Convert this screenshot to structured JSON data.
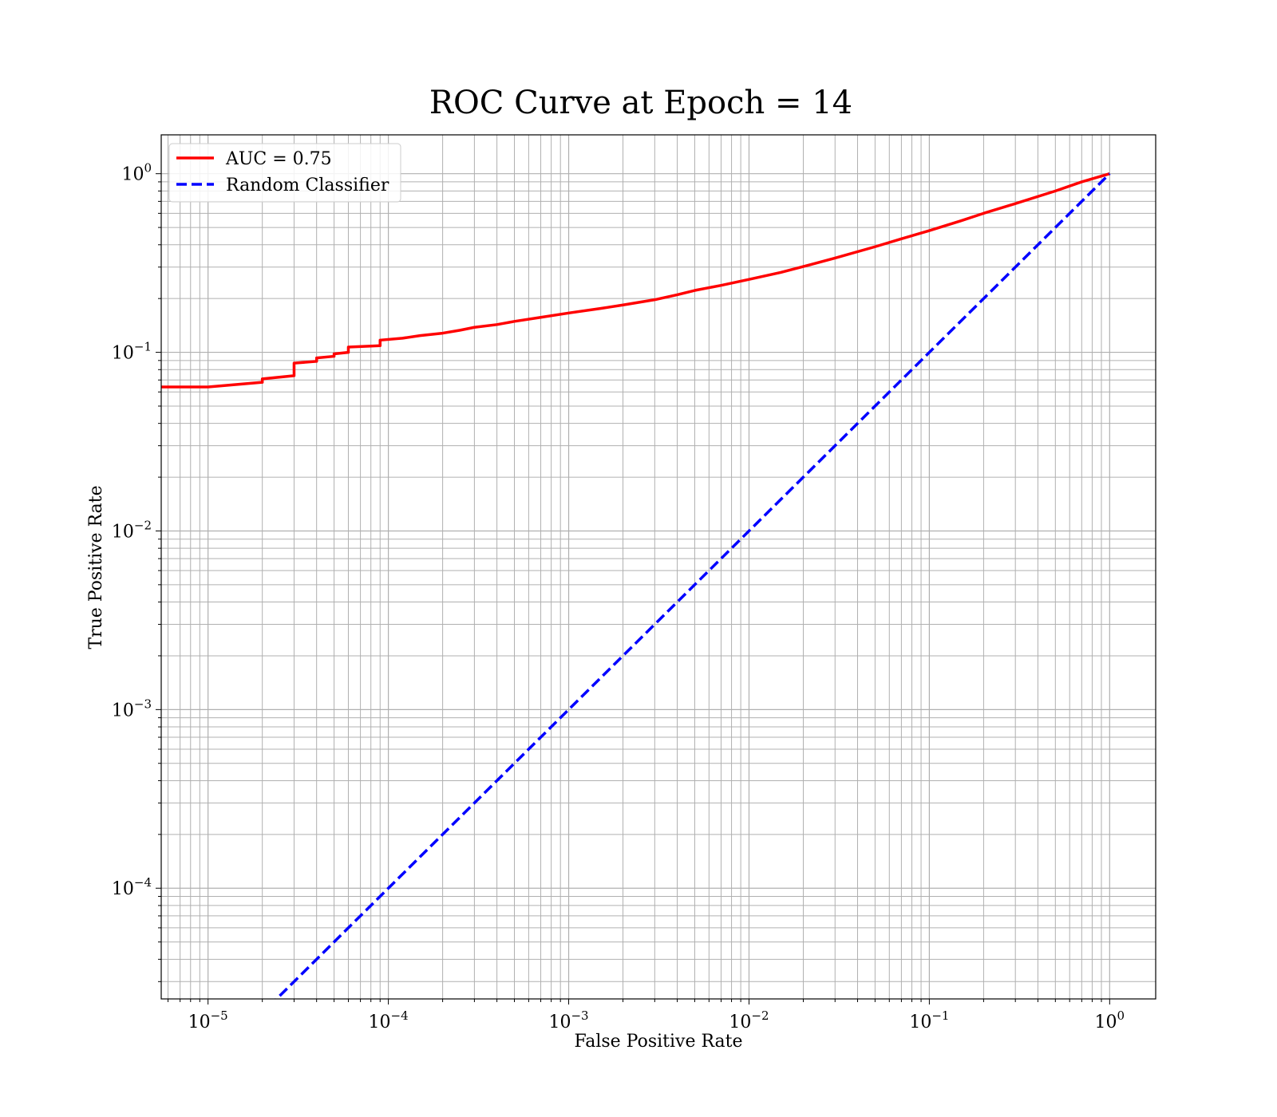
{
  "chart_data": {
    "type": "line",
    "title": "ROC Curve at Epoch = 14",
    "xlabel": "False Positive Rate",
    "ylabel": "True Positive Rate",
    "xscale": "log",
    "yscale": "log",
    "xlim": [
      5.5e-06,
      1.8
    ],
    "ylim": [
      2.4e-05,
      1.65
    ],
    "grid": true,
    "legend_position": "upper left",
    "xticks": [
      {
        "value": 1e-05,
        "base": "10",
        "exp": "−5"
      },
      {
        "value": 0.0001,
        "base": "10",
        "exp": "−4"
      },
      {
        "value": 0.001,
        "base": "10",
        "exp": "−3"
      },
      {
        "value": 0.01,
        "base": "10",
        "exp": "−2"
      },
      {
        "value": 0.1,
        "base": "10",
        "exp": "−1"
      },
      {
        "value": 1,
        "base": "10",
        "exp": "0"
      }
    ],
    "yticks": [
      {
        "value": 0.0001,
        "base": "10",
        "exp": "−4"
      },
      {
        "value": 0.001,
        "base": "10",
        "exp": "−3"
      },
      {
        "value": 0.01,
        "base": "10",
        "exp": "−2"
      },
      {
        "value": 0.1,
        "base": "10",
        "exp": "−1"
      },
      {
        "value": 1,
        "base": "10",
        "exp": "0"
      }
    ],
    "series": [
      {
        "name": "AUC = 0.75",
        "color": "#ff0000",
        "style": "solid",
        "x": [
          5.5e-06,
          1e-05,
          2e-05,
          2e-05,
          3e-05,
          3e-05,
          4e-05,
          4e-05,
          5e-05,
          5e-05,
          6e-05,
          6e-05,
          9e-05,
          9e-05,
          0.00012,
          0.00015,
          0.0002,
          0.00025,
          0.0003,
          0.0004,
          0.0005,
          0.0007,
          0.001,
          0.0015,
          0.002,
          0.003,
          0.004,
          0.005,
          0.007,
          0.01,
          0.015,
          0.02,
          0.03,
          0.05,
          0.07,
          0.1,
          0.15,
          0.2,
          0.3,
          0.5,
          0.7,
          1.0
        ],
        "y": [
          0.064,
          0.064,
          0.068,
          0.071,
          0.074,
          0.087,
          0.089,
          0.093,
          0.095,
          0.098,
          0.1,
          0.107,
          0.109,
          0.117,
          0.12,
          0.124,
          0.128,
          0.133,
          0.138,
          0.143,
          0.149,
          0.157,
          0.166,
          0.176,
          0.184,
          0.197,
          0.21,
          0.222,
          0.237,
          0.256,
          0.28,
          0.302,
          0.337,
          0.39,
          0.432,
          0.48,
          0.545,
          0.6,
          0.68,
          0.8,
          0.9,
          1.0
        ]
      },
      {
        "name": "Random Classifier",
        "color": "#0000ff",
        "style": "dashed",
        "x": [
          5.5e-06,
          1.0
        ],
        "y": [
          5.5e-06,
          1.0
        ]
      }
    ]
  }
}
